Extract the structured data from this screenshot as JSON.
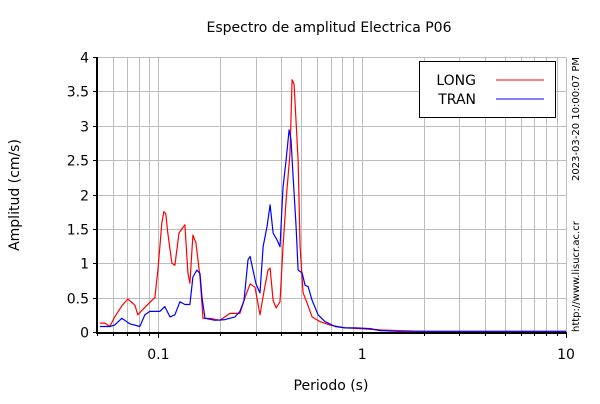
{
  "chart_data": {
    "type": "line",
    "title": "Espectro de amplitud Electrica P06",
    "xlabel": "Periodo (s)",
    "ylabel": "Amplitud (cm/s)",
    "xscale": "log",
    "xlim": [
      0.05,
      10
    ],
    "ylim": [
      0,
      4
    ],
    "xticks": [
      0.1,
      1,
      10
    ],
    "xtick_labels": [
      "0.1",
      "1",
      "10"
    ],
    "yticks": [
      0,
      0.5,
      1,
      1.5,
      2,
      2.5,
      3,
      3.5,
      4
    ],
    "ytick_labels": [
      "0",
      "0.5",
      "1",
      "1.5",
      "2",
      "2.5",
      "3",
      "3.5",
      "4"
    ],
    "grid": true,
    "legend": "top-right",
    "series": [
      {
        "name": "LONG",
        "color": "#ff0000",
        "points": [
          [
            0.0516,
            0.13
          ],
          [
            0.0546,
            0.13
          ],
          [
            0.0578,
            0.08
          ],
          [
            0.0611,
            0.22
          ],
          [
            0.0662,
            0.38
          ],
          [
            0.0708,
            0.48
          ],
          [
            0.0767,
            0.39
          ],
          [
            0.0793,
            0.25
          ],
          [
            0.0859,
            0.36
          ],
          [
            0.0929,
            0.46
          ],
          [
            0.0962,
            0.5
          ],
          [
            0.0995,
            0.9
          ],
          [
            0.104,
            1.58
          ],
          [
            0.1064,
            1.75
          ],
          [
            0.1088,
            1.72
          ],
          [
            0.1113,
            1.44
          ],
          [
            0.1165,
            1.0
          ],
          [
            0.1205,
            0.97
          ],
          [
            0.1262,
            1.44
          ],
          [
            0.1304,
            1.5
          ],
          [
            0.135,
            1.56
          ],
          [
            0.1396,
            0.86
          ],
          [
            0.1428,
            0.71
          ],
          [
            0.1478,
            1.41
          ],
          [
            0.1529,
            1.3
          ],
          [
            0.16,
            0.8
          ],
          [
            0.1655,
            0.2
          ],
          [
            0.179,
            0.2
          ],
          [
            0.2005,
            0.17
          ],
          [
            0.2245,
            0.27
          ],
          [
            0.2513,
            0.27
          ],
          [
            0.266,
            0.5
          ],
          [
            0.2818,
            0.7
          ],
          [
            0.2979,
            0.65
          ],
          [
            0.3154,
            0.25
          ],
          [
            0.3302,
            0.6
          ],
          [
            0.3452,
            0.9
          ],
          [
            0.3532,
            0.93
          ],
          [
            0.3655,
            0.46
          ],
          [
            0.378,
            0.35
          ],
          [
            0.3954,
            0.44
          ],
          [
            0.409,
            1.24
          ],
          [
            0.4233,
            1.92
          ],
          [
            0.4426,
            2.6
          ],
          [
            0.4529,
            3.67
          ],
          [
            0.4634,
            3.6
          ],
          [
            0.485,
            2.5
          ],
          [
            0.4959,
            1.24
          ],
          [
            0.513,
            0.57
          ],
          [
            0.537,
            0.42
          ],
          [
            0.568,
            0.22
          ],
          [
            0.622,
            0.15
          ],
          [
            0.697,
            0.1
          ],
          [
            0.824,
            0.06
          ],
          [
            0.978,
            0.05
          ],
          [
            1.225,
            0.03
          ],
          [
            1.5,
            0.02
          ],
          [
            2.0,
            0.01
          ],
          [
            10,
            0.01
          ]
        ]
      },
      {
        "name": "TRAN",
        "color": "#0000ff",
        "points": [
          [
            0.0516,
            0.08
          ],
          [
            0.0578,
            0.08
          ],
          [
            0.0611,
            0.1
          ],
          [
            0.0662,
            0.2
          ],
          [
            0.0724,
            0.12
          ],
          [
            0.0811,
            0.08
          ],
          [
            0.0859,
            0.25
          ],
          [
            0.0908,
            0.3
          ],
          [
            0.0962,
            0.3
          ],
          [
            0.1017,
            0.3
          ],
          [
            0.1076,
            0.37
          ],
          [
            0.114,
            0.22
          ],
          [
            0.1205,
            0.25
          ],
          [
            0.1276,
            0.44
          ],
          [
            0.135,
            0.4
          ],
          [
            0.1428,
            0.4
          ],
          [
            0.1478,
            0.8
          ],
          [
            0.1545,
            0.9
          ],
          [
            0.16,
            0.85
          ],
          [
            0.1637,
            0.5
          ],
          [
            0.1693,
            0.2
          ],
          [
            0.1896,
            0.17
          ],
          [
            0.2123,
            0.18
          ],
          [
            0.2377,
            0.22
          ],
          [
            0.2513,
            0.3
          ],
          [
            0.263,
            0.46
          ],
          [
            0.2753,
            1.05
          ],
          [
            0.2818,
            1.1
          ],
          [
            0.2913,
            0.9
          ],
          [
            0.3013,
            0.7
          ],
          [
            0.3118,
            0.6
          ],
          [
            0.3154,
            0.57
          ],
          [
            0.3266,
            1.24
          ],
          [
            0.3414,
            1.53
          ],
          [
            0.3532,
            1.85
          ],
          [
            0.3655,
            1.44
          ],
          [
            0.382,
            1.34
          ],
          [
            0.3954,
            1.24
          ],
          [
            0.409,
            2.1
          ],
          [
            0.4233,
            2.5
          ],
          [
            0.438,
            2.94
          ],
          [
            0.4477,
            2.8
          ],
          [
            0.458,
            2.26
          ],
          [
            0.474,
            1.53
          ],
          [
            0.485,
            0.9
          ],
          [
            0.507,
            0.86
          ],
          [
            0.525,
            0.68
          ],
          [
            0.543,
            0.66
          ],
          [
            0.568,
            0.46
          ],
          [
            0.608,
            0.25
          ],
          [
            0.658,
            0.15
          ],
          [
            0.737,
            0.08
          ],
          [
            0.824,
            0.06
          ],
          [
            0.924,
            0.06
          ],
          [
            1.094,
            0.05
          ],
          [
            1.225,
            0.02
          ],
          [
            1.5,
            0.01
          ],
          [
            10,
            0.01
          ]
        ]
      }
    ]
  },
  "side_text": {
    "timestamp": "2023-03-20 10:00:07 PM",
    "url": "http://www.lisucr.ac.cr"
  }
}
